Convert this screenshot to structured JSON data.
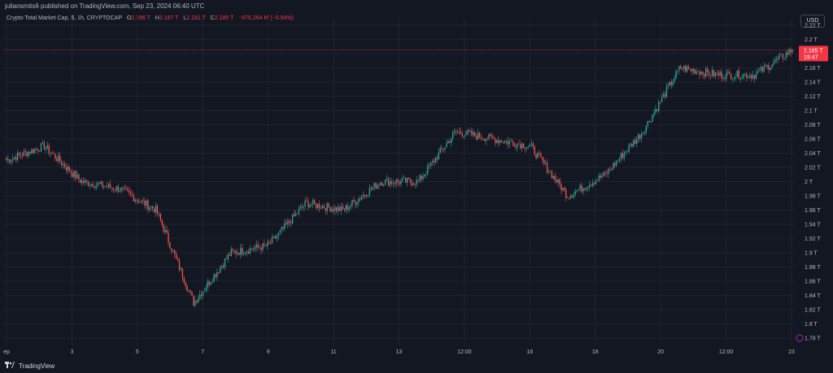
{
  "header": {
    "attribution": "juliansmits6 published on TradingView.com, Sep 23, 2024 06:40 UTC",
    "currency_button": "USD"
  },
  "legend": {
    "symbol": "Crypto Total Market Cap, $, 1h, CRYPTOCAP",
    "open_label": "O",
    "open": "2.186 T",
    "high_label": "H",
    "high": "2.187 T",
    "low_label": "L",
    "low": "2.181 T",
    "close_label": "C",
    "close": "2.185 T",
    "change": "−976.264 M (−0.04%)"
  },
  "price_badge": {
    "price": "2.185 T",
    "countdown": "19:47"
  },
  "footer": {
    "brand": "TradingView"
  },
  "colors": {
    "up": "#26a69a",
    "down": "#ef5350",
    "background": "#131722",
    "grid": "#1f2330",
    "axis_text": "#b2b5be",
    "price_line": "#f23645"
  },
  "chart_data": {
    "type": "candlestick",
    "title": "Crypto Total Market Cap, $, 1h, CRYPTOCAP",
    "y_unit": "T (trillion USD)",
    "ylim": [
      1.77,
      2.23
    ],
    "y_ticks": [
      1.78,
      1.8,
      1.82,
      1.84,
      1.86,
      1.88,
      1.9,
      1.92,
      1.94,
      1.96,
      1.98,
      2.0,
      2.02,
      2.04,
      2.06,
      2.08,
      2.1,
      2.12,
      2.14,
      2.16,
      2.18,
      2.2,
      2.22
    ],
    "y_tick_labels": [
      "1.78 T",
      "1.8 T",
      "1.82 T",
      "1.84 T",
      "1.86 T",
      "1.88 T",
      "1.9 T",
      "1.92 T",
      "1.94 T",
      "1.96 T",
      "1.98 T",
      "2 T",
      "2.02 T",
      "2.04 T",
      "2.06 T",
      "2.08 T",
      "2.1 T",
      "2.12 T",
      "2.14 T",
      "2.16 T",
      "2.18 T",
      "2.2 T",
      "2.22 T"
    ],
    "x_tick_labels": [
      "ep",
      "3",
      "5",
      "7",
      "9",
      "11",
      "13",
      "12:00",
      "16",
      "18",
      "20",
      "12:00",
      "23"
    ],
    "last_price": 2.185,
    "grid": true,
    "series": [
      {
        "x": "Sep 2",
        "close": 2.03
      },
      {
        "x": "Sep 3",
        "close": 2.05
      },
      {
        "x": "Sep 4",
        "close": 2.0
      },
      {
        "x": "Sep 5",
        "close": 1.99
      },
      {
        "x": "Sep 6",
        "close": 1.96
      },
      {
        "x": "Sep 7",
        "close": 1.83
      },
      {
        "x": "Sep 8",
        "close": 1.9
      },
      {
        "x": "Sep 9",
        "close": 1.91
      },
      {
        "x": "Sep 10",
        "close": 1.97
      },
      {
        "x": "Sep 11",
        "close": 1.96
      },
      {
        "x": "Sep 12",
        "close": 2.0
      },
      {
        "x": "Sep 13",
        "close": 2.0
      },
      {
        "x": "Sep 14",
        "close": 2.07
      },
      {
        "x": "Sep 15",
        "close": 2.06
      },
      {
        "x": "Sep 16",
        "close": 2.05
      },
      {
        "x": "Sep 17",
        "close": 1.98
      },
      {
        "x": "Sep 18",
        "close": 2.01
      },
      {
        "x": "Sep 19",
        "close": 2.07
      },
      {
        "x": "Sep 20",
        "close": 2.16
      },
      {
        "x": "Sep 21",
        "close": 2.15
      },
      {
        "x": "Sep 22",
        "close": 2.15
      },
      {
        "x": "Sep 23",
        "close": 2.185
      }
    ]
  }
}
